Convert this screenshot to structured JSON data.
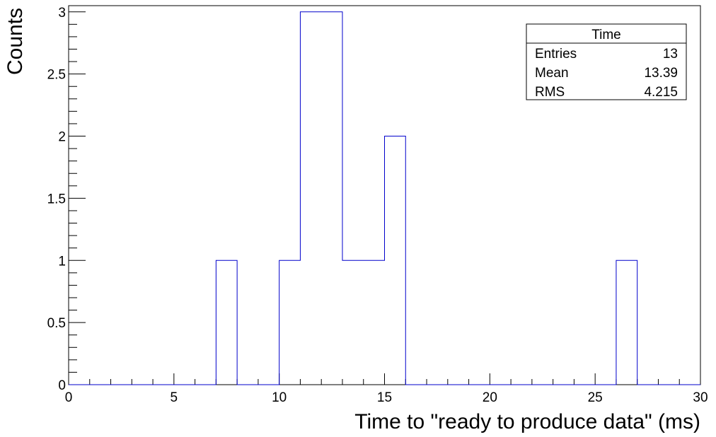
{
  "chart_data": {
    "type": "bar",
    "histogram_type": "step",
    "xlabel": "Time to \"ready to produce data\" (ms)",
    "ylabel": "Counts",
    "xlim": [
      0,
      30
    ],
    "ylim": [
      0,
      3.05
    ],
    "x_ticks": [
      0,
      5,
      10,
      15,
      20,
      25,
      30
    ],
    "x_tick_labels": [
      "0",
      "5",
      "10",
      "15",
      "20",
      "25",
      "30"
    ],
    "y_ticks": [
      0,
      0.5,
      1,
      1.5,
      2,
      2.5,
      3
    ],
    "y_tick_labels": [
      "0",
      "0.5",
      "1",
      "1.5",
      "2",
      "2.5",
      "3"
    ],
    "bin_edges": [
      0,
      1,
      2,
      3,
      4,
      5,
      6,
      7,
      8,
      9,
      10,
      11,
      12,
      13,
      14,
      15,
      16,
      17,
      18,
      19,
      20,
      21,
      22,
      23,
      24,
      25,
      26,
      27,
      28,
      29,
      30
    ],
    "values": [
      0,
      0,
      0,
      0,
      0,
      0,
      0,
      1,
      0,
      0,
      1,
      3,
      3,
      1,
      1,
      2,
      0,
      0,
      0,
      0,
      0,
      0,
      0,
      0,
      0,
      0,
      1,
      0,
      0,
      0
    ],
    "line_color": "#0000cc",
    "grid": false,
    "legend_placement": "top-right",
    "stats_box": {
      "title": "Time",
      "rows": [
        {
          "label": "Entries",
          "value": "13"
        },
        {
          "label": "Mean",
          "value": "13.39"
        },
        {
          "label": "RMS",
          "value": "4.215"
        }
      ]
    }
  }
}
